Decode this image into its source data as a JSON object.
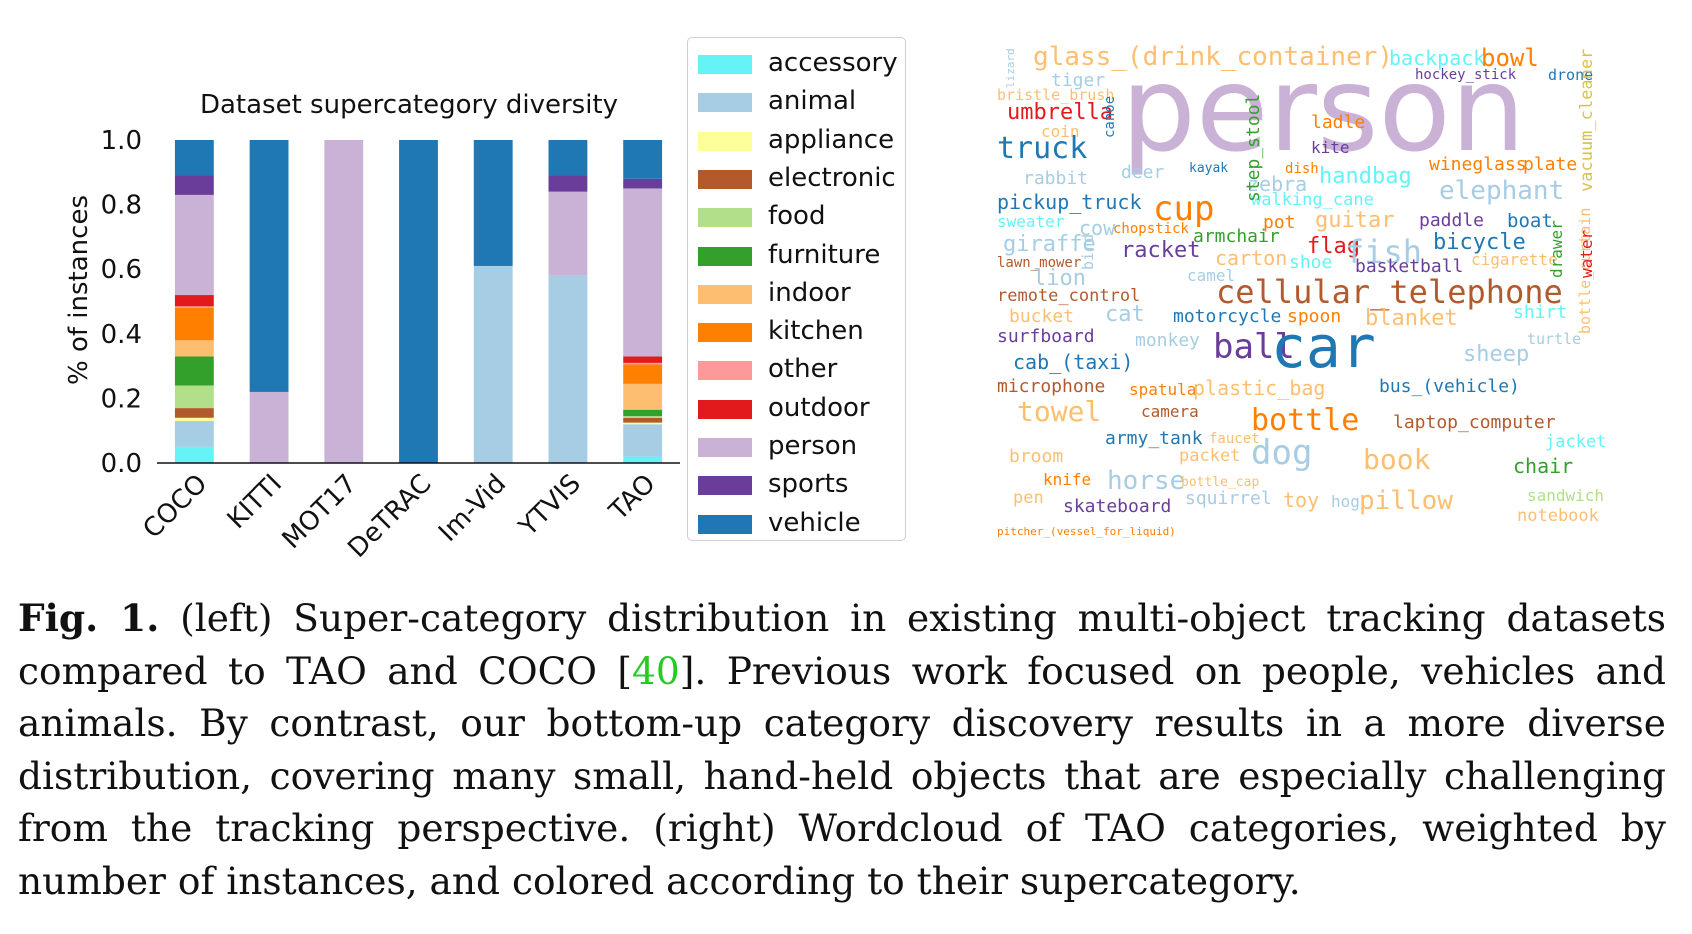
{
  "chart_data": {
    "type": "bar",
    "stacked": true,
    "title": "Dataset supercategory diversity",
    "xlabel": "",
    "ylabel": "% of instances",
    "ylim": [
      0,
      1.0
    ],
    "yticks": [
      "0.0",
      "0.2",
      "0.4",
      "0.6",
      "0.8",
      "1.0"
    ],
    "categories": [
      "COCO",
      "KITTI",
      "MOT17",
      "DeTRAC",
      "Im-Vid",
      "YTVIS",
      "TAO"
    ],
    "series": [
      {
        "name": "accessory",
        "color": "#66f3f7",
        "values": [
          0.05,
          0,
          0,
          0,
          0,
          0,
          0.02
        ]
      },
      {
        "name": "animal",
        "color": "#a6cde3",
        "values": [
          0.08,
          0,
          0,
          0,
          0.61,
          0.58,
          0.1
        ]
      },
      {
        "name": "appliance",
        "color": "#ffff99",
        "values": [
          0.01,
          0,
          0,
          0,
          0,
          0,
          0.005
        ]
      },
      {
        "name": "electronic",
        "color": "#b25a2c",
        "values": [
          0.03,
          0,
          0,
          0,
          0,
          0,
          0.015
        ]
      },
      {
        "name": "food",
        "color": "#b2df8a",
        "values": [
          0.07,
          0,
          0,
          0,
          0,
          0,
          0.005
        ]
      },
      {
        "name": "furniture",
        "color": "#33a02c",
        "values": [
          0.09,
          0,
          0,
          0,
          0,
          0,
          0.02
        ]
      },
      {
        "name": "indoor",
        "color": "#fdbf6f",
        "values": [
          0.05,
          0,
          0,
          0,
          0,
          0,
          0.08
        ]
      },
      {
        "name": "kitchen",
        "color": "#ff7f00",
        "values": [
          0.1,
          0,
          0,
          0,
          0,
          0,
          0.06
        ]
      },
      {
        "name": "other",
        "color": "#fb9a99",
        "values": [
          0.005,
          0,
          0,
          0,
          0,
          0,
          0.005
        ]
      },
      {
        "name": "outdoor",
        "color": "#e31a1c",
        "values": [
          0.035,
          0,
          0,
          0,
          0,
          0,
          0.02
        ]
      },
      {
        "name": "person",
        "color": "#cab2d6",
        "values": [
          0.31,
          0.22,
          1.0,
          0,
          0,
          0.26,
          0.52
        ]
      },
      {
        "name": "sports",
        "color": "#6a3d9a",
        "values": [
          0.06,
          0,
          0,
          0,
          0,
          0.05,
          0.03
        ]
      },
      {
        "name": "vehicle",
        "color": "#1f78b4",
        "values": [
          0.11,
          0.78,
          0,
          1.0,
          0.39,
          0.11,
          0.12
        ]
      }
    ],
    "grid": false,
    "legend_position": "right"
  },
  "wordcloud": {
    "colors": {
      "accessory": "#66f3f7",
      "animal": "#a6cde3",
      "appliance": "#ffff99",
      "electronic": "#b25a2c",
      "food": "#b2df8a",
      "furniture": "#33a02c",
      "indoor": "#fdbf6f",
      "kitchen": "#ff7f00",
      "other": "#fb9a99",
      "outdoor": "#e31a1c",
      "person": "#cab2d6",
      "sports": "#6a3d9a",
      "vehicle": "#1f78b4"
    },
    "words": [
      {
        "text": "person",
        "cat": "person"
      },
      {
        "text": "glass_(drink_container)",
        "cat": "indoor"
      },
      {
        "text": "backpack",
        "cat": "accessory"
      },
      {
        "text": "bowl",
        "cat": "kitchen"
      },
      {
        "text": "tiger",
        "cat": "animal"
      },
      {
        "text": "hockey_stick",
        "cat": "sports"
      },
      {
        "text": "drone",
        "cat": "vehicle"
      },
      {
        "text": "bristle_brush",
        "cat": "indoor"
      },
      {
        "text": "umbrella",
        "cat": "outdoor"
      },
      {
        "text": "coin",
        "cat": "indoor"
      },
      {
        "text": "ladle",
        "cat": "kitchen"
      },
      {
        "text": "truck",
        "cat": "vehicle"
      },
      {
        "text": "kite",
        "cat": "sports"
      },
      {
        "text": "wineglass",
        "cat": "kitchen"
      },
      {
        "text": "plate",
        "cat": "kitchen"
      },
      {
        "text": "rabbit",
        "cat": "animal"
      },
      {
        "text": "deer",
        "cat": "animal"
      },
      {
        "text": "kayak",
        "cat": "vehicle"
      },
      {
        "text": "dish",
        "cat": "kitchen"
      },
      {
        "text": "handbag",
        "cat": "accessory"
      },
      {
        "text": "zebra",
        "cat": "animal"
      },
      {
        "text": "elephant",
        "cat": "animal"
      },
      {
        "text": "pickup_truck",
        "cat": "vehicle"
      },
      {
        "text": "cup",
        "cat": "kitchen"
      },
      {
        "text": "walking_cane",
        "cat": "accessory"
      },
      {
        "text": "pot",
        "cat": "kitchen"
      },
      {
        "text": "guitar",
        "cat": "indoor"
      },
      {
        "text": "paddle",
        "cat": "sports"
      },
      {
        "text": "boat",
        "cat": "vehicle"
      },
      {
        "text": "sweater",
        "cat": "accessory"
      },
      {
        "text": "cow",
        "cat": "animal"
      },
      {
        "text": "chopstick",
        "cat": "kitchen"
      },
      {
        "text": "armchair",
        "cat": "furniture"
      },
      {
        "text": "giraffe",
        "cat": "animal"
      },
      {
        "text": "racket",
        "cat": "sports"
      },
      {
        "text": "flag",
        "cat": "outdoor"
      },
      {
        "text": "fish",
        "cat": "animal"
      },
      {
        "text": "bicycle",
        "cat": "vehicle"
      },
      {
        "text": "lawn_mower",
        "cat": "electronic"
      },
      {
        "text": "carton",
        "cat": "indoor"
      },
      {
        "text": "shoe",
        "cat": "accessory"
      },
      {
        "text": "basketball",
        "cat": "sports"
      },
      {
        "text": "cigarette",
        "cat": "indoor"
      },
      {
        "text": "lion",
        "cat": "animal"
      },
      {
        "text": "camel",
        "cat": "animal"
      },
      {
        "text": "remote_control",
        "cat": "electronic"
      },
      {
        "text": "cellular_telephone",
        "cat": "electronic"
      },
      {
        "text": "bucket",
        "cat": "indoor"
      },
      {
        "text": "cat",
        "cat": "animal"
      },
      {
        "text": "motorcycle",
        "cat": "vehicle"
      },
      {
        "text": "spoon",
        "cat": "kitchen"
      },
      {
        "text": "blanket",
        "cat": "indoor"
      },
      {
        "text": "shirt",
        "cat": "accessory"
      },
      {
        "text": "surfboard",
        "cat": "sports"
      },
      {
        "text": "monkey",
        "cat": "animal"
      },
      {
        "text": "ball",
        "cat": "sports"
      },
      {
        "text": "car",
        "cat": "vehicle"
      },
      {
        "text": "turtle",
        "cat": "animal"
      },
      {
        "text": "cab_(taxi)",
        "cat": "vehicle"
      },
      {
        "text": "sheep",
        "cat": "animal"
      },
      {
        "text": "microphone",
        "cat": "electronic"
      },
      {
        "text": "spatula",
        "cat": "kitchen"
      },
      {
        "text": "plastic_bag",
        "cat": "indoor"
      },
      {
        "text": "bus_(vehicle)",
        "cat": "vehicle"
      },
      {
        "text": "towel",
        "cat": "indoor"
      },
      {
        "text": "camera",
        "cat": "electronic"
      },
      {
        "text": "bottle",
        "cat": "kitchen"
      },
      {
        "text": "laptop_computer",
        "cat": "electronic"
      },
      {
        "text": "army_tank",
        "cat": "vehicle"
      },
      {
        "text": "faucet",
        "cat": "indoor"
      },
      {
        "text": "dog",
        "cat": "animal"
      },
      {
        "text": "jacket",
        "cat": "accessory"
      },
      {
        "text": "broom",
        "cat": "indoor"
      },
      {
        "text": "packet",
        "cat": "indoor"
      },
      {
        "text": "book",
        "cat": "indoor"
      },
      {
        "text": "chair",
        "cat": "furniture"
      },
      {
        "text": "knife",
        "cat": "kitchen"
      },
      {
        "text": "horse",
        "cat": "animal"
      },
      {
        "text": "bottle_cap",
        "cat": "indoor"
      },
      {
        "text": "pen",
        "cat": "indoor"
      },
      {
        "text": "skateboard",
        "cat": "sports"
      },
      {
        "text": "squirrel",
        "cat": "animal"
      },
      {
        "text": "toy",
        "cat": "indoor"
      },
      {
        "text": "hog",
        "cat": "animal"
      },
      {
        "text": "pillow",
        "cat": "indoor"
      },
      {
        "text": "sandwich",
        "cat": "food"
      },
      {
        "text": "notebook",
        "cat": "indoor"
      },
      {
        "text": "pitcher_(vessel_for_liquid)",
        "cat": "kitchen"
      },
      {
        "text": "step_stool",
        "cat": "furniture"
      },
      {
        "text": "vacuum_cleaner",
        "cat": "appliance"
      },
      {
        "text": "bottle_curtain",
        "cat": "indoor"
      },
      {
        "text": "water",
        "cat": "outdoor"
      },
      {
        "text": "drawer",
        "cat": "furniture"
      },
      {
        "text": "canoe",
        "cat": "vehicle"
      },
      {
        "text": "bird",
        "cat": "animal"
      },
      {
        "text": "lizard",
        "cat": "animal"
      }
    ]
  },
  "caption": {
    "label": "Fig. 1.",
    "text_before_cite": "(left) Super-category distribution in existing multi-object tracking datasets compared to TAO and COCO [",
    "cite": "40",
    "text_after_cite": "]. Previous work focused on people, vehicles and animals. By contrast, our bottom-up category discovery results in a more diverse distribution, covering many small, hand-held objects that are especially challenging from the tracking perspective. (right) Wordcloud of TAO categories, weighted by number of instances, and colored according to their supercategory."
  }
}
